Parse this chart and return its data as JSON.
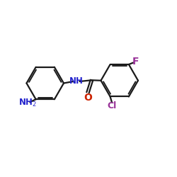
{
  "bg_color": "#ffffff",
  "bond_color": "#1a1a1a",
  "NH_color": "#2222cc",
  "O_color": "#cc2200",
  "Cl_color": "#993399",
  "F_color": "#993399",
  "NH2_color": "#2222cc",
  "bond_width": 1.6,
  "figsize": [
    2.5,
    2.5
  ],
  "dpi": 100,
  "xlim": [
    0,
    10
  ],
  "ylim": [
    0,
    10
  ]
}
